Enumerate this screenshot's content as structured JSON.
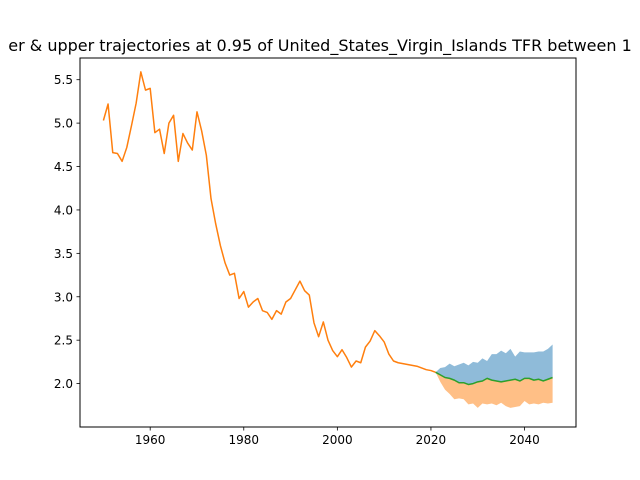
{
  "chart_data": {
    "type": "line",
    "title": "er & upper trajectories at 0.95 of United_States_Virgin_Islands TFR between 1",
    "xlim": [
      1945,
      2051
    ],
    "ylim": [
      1.5,
      5.75
    ],
    "xticks": [
      1960,
      1980,
      2000,
      2020,
      2040
    ],
    "yticks": [
      2.0,
      2.5,
      3.0,
      3.5,
      4.0,
      4.5,
      5.0,
      5.5
    ],
    "ytick_labels": [
      "2.0",
      "2.5",
      "3.0",
      "3.5",
      "4.0",
      "4.5",
      "5.0",
      "5.5"
    ],
    "colors": {
      "historical": "#ff7f0e",
      "median": "#2ca02c",
      "upper_band": "#1f77b4",
      "lower_band": "#ff7f0e"
    },
    "series": [
      {
        "x": [
          1950,
          1951,
          1952,
          1953,
          1954,
          1955,
          1956,
          1957,
          1958,
          1959,
          1960,
          1961,
          1962,
          1963,
          1964,
          1965,
          1966,
          1967,
          1968,
          1969,
          1970,
          1971,
          1972,
          1973,
          1974,
          1975,
          1976,
          1977,
          1978,
          1979,
          1980,
          1981,
          1982,
          1983,
          1984,
          1985,
          1986,
          1987,
          1988,
          1989,
          1990,
          1991,
          1992,
          1993,
          1994,
          1995,
          1996,
          1997,
          1998,
          1999,
          2000,
          2001,
          2002,
          2003,
          2004,
          2005,
          2006,
          2007,
          2008,
          2009,
          2010,
          2011,
          2012,
          2013,
          2014,
          2015,
          2016,
          2017,
          2018,
          2019,
          2020,
          2021
        ],
        "values": [
          5.03,
          5.22,
          4.66,
          4.65,
          4.56,
          4.72,
          4.97,
          5.23,
          5.59,
          5.38,
          5.4,
          4.89,
          4.93,
          4.65,
          5.0,
          5.09,
          4.56,
          4.88,
          4.77,
          4.69,
          5.13,
          4.91,
          4.63,
          4.13,
          3.84,
          3.59,
          3.39,
          3.25,
          3.27,
          2.98,
          3.06,
          2.88,
          2.94,
          2.98,
          2.84,
          2.82,
          2.74,
          2.84,
          2.8,
          2.94,
          2.98,
          3.08,
          3.18,
          3.07,
          3.02,
          2.7,
          2.54,
          2.71,
          2.5,
          2.38,
          2.31,
          2.39,
          2.3,
          2.19,
          2.26,
          2.24,
          2.42,
          2.49,
          2.61,
          2.55,
          2.48,
          2.34,
          2.26,
          2.24,
          2.23,
          2.22,
          2.21,
          2.2,
          2.18,
          2.16,
          2.15,
          2.13
        ]
      },
      {
        "x": [
          2021,
          2022,
          2023,
          2024,
          2025,
          2026,
          2027,
          2028,
          2029,
          2030,
          2031,
          2032,
          2033,
          2034,
          2035,
          2036,
          2037,
          2038,
          2039,
          2040,
          2041,
          2042,
          2043,
          2044,
          2045,
          2046
        ],
        "values": [
          2.13,
          2.1,
          2.07,
          2.06,
          2.04,
          2.01,
          2.01,
          1.99,
          2.0,
          2.02,
          2.03,
          2.06,
          2.04,
          2.03,
          2.02,
          2.03,
          2.04,
          2.05,
          2.03,
          2.06,
          2.06,
          2.04,
          2.05,
          2.03,
          2.05,
          2.07
        ]
      }
    ],
    "bands": {
      "x": [
        2021,
        2022,
        2023,
        2024,
        2025,
        2026,
        2027,
        2028,
        2029,
        2030,
        2031,
        2032,
        2033,
        2034,
        2035,
        2036,
        2037,
        2038,
        2039,
        2040,
        2041,
        2042,
        2043,
        2044,
        2045,
        2046
      ],
      "upper": [
        2.13,
        2.18,
        2.19,
        2.23,
        2.2,
        2.22,
        2.24,
        2.21,
        2.25,
        2.24,
        2.29,
        2.26,
        2.34,
        2.34,
        2.38,
        2.35,
        2.4,
        2.31,
        2.37,
        2.36,
        2.36,
        2.36,
        2.37,
        2.37,
        2.4,
        2.45
      ],
      "lower": [
        2.13,
        2.02,
        1.93,
        1.88,
        1.82,
        1.83,
        1.82,
        1.76,
        1.77,
        1.72,
        1.77,
        1.76,
        1.77,
        1.75,
        1.78,
        1.74,
        1.72,
        1.73,
        1.74,
        1.8,
        1.76,
        1.77,
        1.76,
        1.78,
        1.77,
        1.78
      ]
    }
  }
}
